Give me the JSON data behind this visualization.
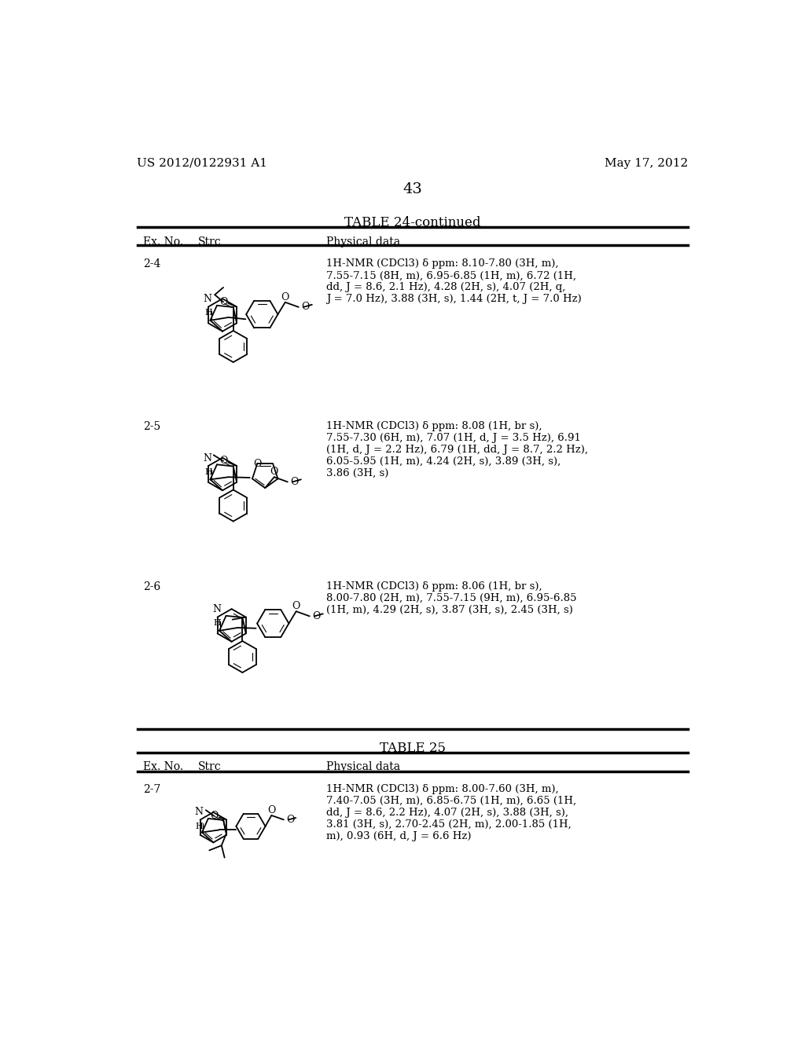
{
  "background_color": "#ffffff",
  "page_number": "43",
  "left_header": "US 2012/0122931 A1",
  "right_header": "May 17, 2012",
  "table1_title": "TABLE 24-continued",
  "table2_title": "TABLE 25",
  "col1_header": "Ex. No.",
  "col2_header": "Strc",
  "col3_header": "Physical data",
  "entries": [
    {
      "ex_no": "2-4",
      "nmr": "1H-NMR (CDCl3) δ ppm: 8.10-7.80 (3H, m),\n7.55-7.15 (8H, m), 6.95-6.85 (1H, m), 6.72 (1H,\ndd, J = 8.6, 2.1 Hz), 4.28 (2H, s), 4.07 (2H, q,\nJ = 7.0 Hz), 3.88 (3H, s), 1.44 (2H, t, J = 7.0 Hz)"
    },
    {
      "ex_no": "2-5",
      "nmr": "1H-NMR (CDCl3) δ ppm: 8.08 (1H, br s),\n7.55-7.30 (6H, m), 7.07 (1H, d, J = 3.5 Hz), 6.91\n(1H, d, J = 2.2 Hz), 6.79 (1H, dd, J = 8.7, 2.2 Hz),\n6.05-5.95 (1H, m), 4.24 (2H, s), 3.89 (3H, s),\n3.86 (3H, s)"
    },
    {
      "ex_no": "2-6",
      "nmr": "1H-NMR (CDCl3) δ ppm: 8.06 (1H, br s),\n8.00-7.80 (2H, m), 7.55-7.15 (9H, m), 6.95-6.85\n(1H, m), 4.29 (2H, s), 3.87 (3H, s), 2.45 (3H, s)"
    }
  ],
  "entries2": [
    {
      "ex_no": "2-7",
      "nmr": "1H-NMR (CDCl3) δ ppm: 8.00-7.60 (3H, m),\n7.40-7.05 (3H, m), 6.85-6.75 (1H, m), 6.65 (1H,\ndd, J = 8.6, 2.2 Hz), 4.07 (2H, s), 3.88 (3H, s),\n3.81 (3H, s), 2.70-2.45 (2H, m), 2.00-1.85 (1H,\nm), 0.93 (6H, d, J = 6.6 Hz)"
    }
  ]
}
